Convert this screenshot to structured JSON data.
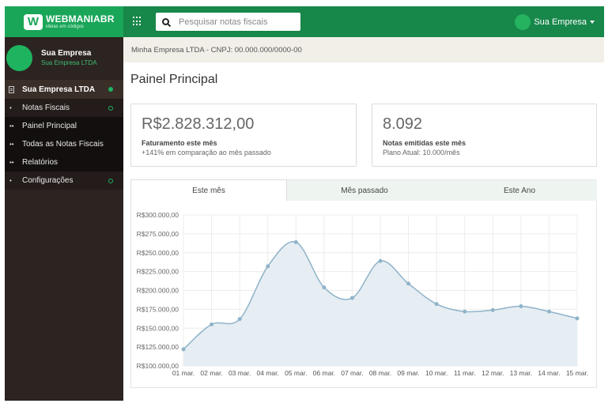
{
  "brand": {
    "name": "WEBMANIABR",
    "tagline": "ideias em códigos",
    "logo_letter": "W"
  },
  "topbar": {
    "search_placeholder": "Pesquisar notas fiscais",
    "user_name": "Sua Empresa",
    "icons": [
      "apps-grid-icon",
      "search-icon",
      "chevron-down-icon"
    ]
  },
  "sidebar": {
    "profile": {
      "name": "Sua Empresa",
      "subtitle": "Sua Empresa LTDA"
    },
    "section": {
      "label": "Sua Empresa LTDA",
      "icon": "document-icon"
    },
    "items": [
      {
        "label": "Notas Fiscais",
        "bullet": "•",
        "indicator": "ring"
      },
      {
        "label": "Painel Principal",
        "bullet": "••"
      },
      {
        "label": "Todas as Notas Fiscais",
        "bullet": "••"
      },
      {
        "label": "Relatórios",
        "bullet": "••"
      },
      {
        "label": "Configurações",
        "bullet": "•",
        "indicator": "ring"
      }
    ]
  },
  "breadcrumb": "Minha Empresa LTDA - CNPJ: 00.000.000/0000-00",
  "page_title": "Painel Principal",
  "cards": [
    {
      "value": "R$2.828.312,00",
      "label": "Faturamento este mês",
      "sub": "+141% em comparação ao mês passado"
    },
    {
      "value": "8.092",
      "label": "Notas emitidas este mês",
      "sub": "Plano Atual: 10.000/mês"
    }
  ],
  "tabs": [
    {
      "label": "Este mês",
      "active": true
    },
    {
      "label": "Mês passado",
      "active": false
    },
    {
      "label": "Este Ano",
      "active": false
    }
  ],
  "colors": {
    "topbar": "#17874a",
    "brand": "#1aa659",
    "accent": "#1eb35f",
    "sidebar": "#2c2421",
    "line": "#8fb3c9"
  },
  "chart_data": {
    "type": "area",
    "categories": [
      "01 mar.",
      "02 mar.",
      "03 mar.",
      "04 mar.",
      "05 mar.",
      "06 mar.",
      "07 mar.",
      "08 mar.",
      "09 mar.",
      "10 mar.",
      "11 mar.",
      "12 mar.",
      "13 mar.",
      "14 mar.",
      "15 mar."
    ],
    "values": [
      122000,
      155000,
      162000,
      232000,
      264000,
      204000,
      190000,
      239000,
      209000,
      182000,
      172000,
      174000,
      179000,
      172000,
      163000
    ],
    "ylim": [
      100000,
      300000
    ],
    "y_ticks": [
      "R$100.000,00",
      "R$125.000,00",
      "R$150.000,00",
      "R$175.000,00",
      "R$200.000,00",
      "R$225.000,00",
      "R$250.000,00",
      "R$275.000,00",
      "R$300.000,00"
    ],
    "grid": true,
    "title": "",
    "xlabel": "",
    "ylabel": ""
  }
}
